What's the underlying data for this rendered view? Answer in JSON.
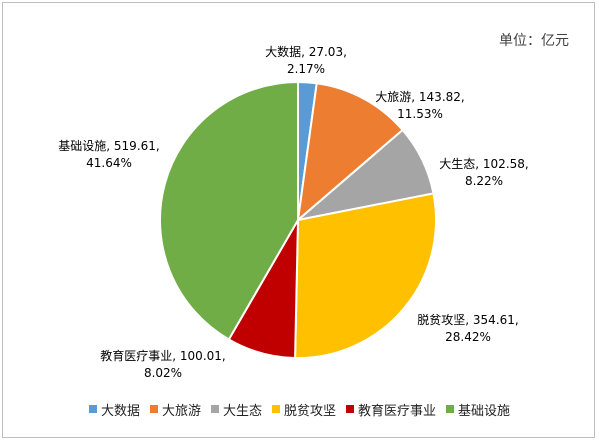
{
  "unit_label": "单位：亿元",
  "chart_data": {
    "type": "pie",
    "title": "",
    "legend_position": "bottom",
    "slices": [
      {
        "name": "大数据",
        "value": 27.03,
        "value_text": "27.03",
        "percent": "2.17%",
        "color": "#5b9bd5"
      },
      {
        "name": "大旅游",
        "value": 143.82,
        "value_text": "143.82",
        "percent": "11.53%",
        "color": "#ed7d31"
      },
      {
        "name": "大生态",
        "value": 102.58,
        "value_text": "102.58",
        "percent": "8.22%",
        "color": "#a5a5a5"
      },
      {
        "name": "脱贫攻坚",
        "value": 354.61,
        "value_text": "354.61",
        "percent": "28.42%",
        "color": "#ffc000"
      },
      {
        "name": "教育医疗事业",
        "value": 100.01,
        "value_text": "100.01",
        "percent": "8.02%",
        "color": "#c00000"
      },
      {
        "name": "基础设施",
        "value": 519.61,
        "value_text": "519.61",
        "percent": "41.64%",
        "color": "#70ad47"
      }
    ]
  }
}
